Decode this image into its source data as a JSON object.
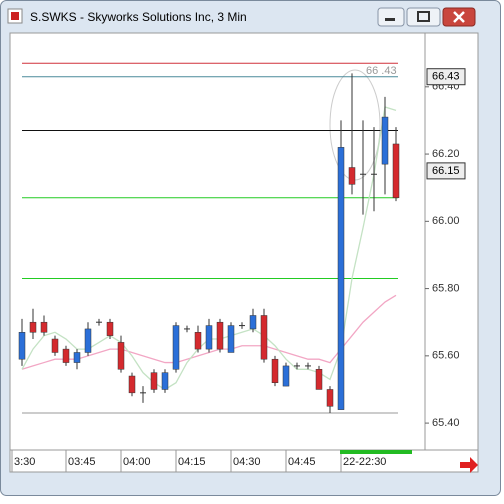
{
  "window": {
    "title": "S.SWKS - Skyworks Solutions Inc, 3 Min"
  },
  "chart_data": {
    "type": "candlestick",
    "categories": [
      "3:30",
      null,
      null,
      null,
      "03:45",
      null,
      null,
      null,
      null,
      "04:00",
      null,
      null,
      null,
      null,
      "04:15",
      null,
      null,
      null,
      null,
      "04:30",
      null,
      null,
      null,
      null,
      "04:45",
      null,
      null,
      null,
      null,
      "22-22:30",
      null,
      null,
      null,
      null,
      null
    ],
    "open": [
      65.59,
      65.7,
      65.7,
      65.65,
      65.62,
      65.58,
      65.61,
      65.7,
      65.7,
      65.64,
      65.54,
      65.49,
      65.55,
      65.5,
      65.56,
      65.68,
      65.67,
      65.62,
      65.7,
      65.61,
      65.69,
      65.68,
      65.72,
      65.59,
      65.51,
      65.57,
      65.57,
      65.56,
      65.5,
      65.44,
      66.16,
      66.14,
      66.14,
      66.17,
      66.23
    ],
    "high": [
      65.71,
      65.74,
      65.72,
      65.66,
      65.63,
      65.62,
      65.7,
      65.71,
      65.71,
      65.66,
      65.55,
      65.51,
      65.56,
      65.56,
      65.7,
      65.69,
      65.69,
      65.71,
      65.71,
      65.7,
      65.7,
      65.74,
      65.74,
      65.6,
      65.58,
      65.58,
      65.58,
      65.57,
      65.51,
      66.3,
      66.44,
      66.3,
      66.28,
      66.37,
      66.28
    ],
    "low": [
      65.57,
      65.65,
      65.66,
      65.6,
      65.57,
      65.56,
      65.6,
      65.69,
      65.65,
      65.55,
      65.48,
      65.46,
      65.49,
      65.49,
      65.55,
      65.67,
      65.61,
      65.61,
      65.61,
      65.61,
      65.68,
      65.67,
      65.58,
      65.51,
      65.51,
      65.56,
      65.56,
      65.5,
      65.43,
      65.44,
      66.08,
      66.02,
      66.03,
      66.08,
      66.06
    ],
    "close": [
      65.67,
      65.67,
      65.67,
      65.61,
      65.58,
      65.61,
      65.68,
      65.7,
      65.66,
      65.56,
      65.49,
      65.49,
      65.5,
      65.55,
      65.69,
      65.68,
      65.62,
      65.69,
      65.62,
      65.69,
      65.69,
      65.72,
      65.59,
      65.52,
      65.57,
      65.57,
      65.57,
      65.5,
      65.45,
      66.22,
      66.11,
      66.14,
      66.14,
      66.31,
      66.07
    ],
    "up_color": "#2b6fd8",
    "down_color": "#d42a2e",
    "series": [
      {
        "color": "#f2a6c4",
        "values": [
          65.56,
          65.57,
          65.58,
          65.59,
          65.59,
          65.59,
          65.6,
          65.61,
          65.62,
          65.62,
          65.61,
          65.6,
          65.59,
          65.58,
          65.58,
          65.59,
          65.6,
          65.61,
          65.62,
          65.62,
          65.63,
          65.63,
          65.63,
          65.62,
          65.61,
          65.6,
          65.59,
          65.59,
          65.58,
          65.62,
          65.66,
          65.7,
          65.73,
          65.76,
          65.78
        ]
      },
      {
        "color": "#c4e2c4",
        "values": [
          65.56,
          65.62,
          65.66,
          65.67,
          65.65,
          65.62,
          65.62,
          65.64,
          65.66,
          65.64,
          65.6,
          65.55,
          65.52,
          65.5,
          65.52,
          65.58,
          65.62,
          65.65,
          65.65,
          65.66,
          65.67,
          65.68,
          65.66,
          65.63,
          65.59,
          65.56,
          65.56,
          65.55,
          65.53,
          65.62,
          65.83,
          65.98,
          66.14,
          66.34,
          66.33
        ]
      }
    ],
    "levels": [
      {
        "value": 66.47,
        "color": "#d0303a"
      },
      {
        "value": 66.43,
        "color": "#4a8a9a"
      },
      {
        "value": 66.27,
        "color": "#111111"
      },
      {
        "value": 66.07,
        "color": "#22cc22"
      },
      {
        "value": 65.83,
        "color": "#22cc22"
      },
      {
        "value": 65.43,
        "color": "#999999"
      }
    ],
    "price_markers": [
      66.43,
      66.15
    ],
    "annotation": "66 .43",
    "ylim": [
      65.32,
      66.56
    ],
    "yticks": [
      {
        "value": 66.4,
        "label": "66.40"
      },
      {
        "value": 66.2,
        "label": "66.20"
      },
      {
        "value": 66.0,
        "label": "66.00"
      },
      {
        "value": 65.8,
        "label": "65.80"
      },
      {
        "value": 65.6,
        "label": "65.60"
      },
      {
        "value": 65.4,
        "label": "65.40"
      }
    ]
  }
}
